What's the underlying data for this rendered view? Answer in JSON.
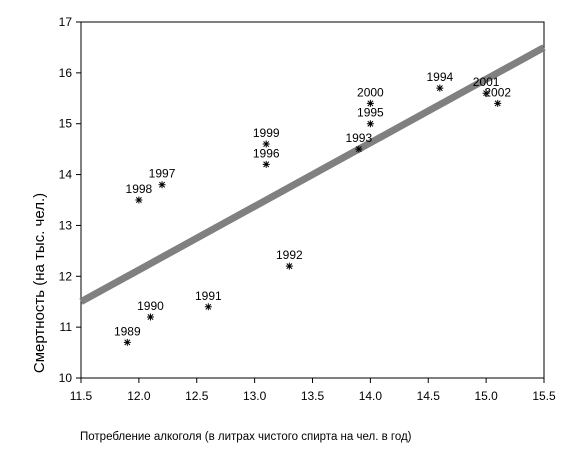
{
  "chart_data": {
    "type": "scatter",
    "title": "",
    "xlabel": "Потребление алкоголя (в литрах чистого спирта на чел. в год)",
    "ylabel": "Смертность (на тыс. чел.)",
    "xlim": [
      11.5,
      15.5
    ],
    "ylim": [
      10,
      17
    ],
    "xticks": [
      "11.5",
      "12.0",
      "12.5",
      "13.0",
      "13.5",
      "14.0",
      "14.5",
      "15.0",
      "15.5"
    ],
    "yticks": [
      "10",
      "11",
      "12",
      "13",
      "14",
      "15",
      "16",
      "17"
    ],
    "grid": false,
    "marker": "asterisk",
    "points": [
      {
        "label": "1989",
        "x": 11.9,
        "y": 10.7
      },
      {
        "label": "1990",
        "x": 12.1,
        "y": 11.2
      },
      {
        "label": "1991",
        "x": 12.6,
        "y": 11.4
      },
      {
        "label": "1992",
        "x": 13.3,
        "y": 12.2
      },
      {
        "label": "1993",
        "x": 13.9,
        "y": 14.5
      },
      {
        "label": "1994",
        "x": 14.6,
        "y": 15.7
      },
      {
        "label": "1995",
        "x": 14.0,
        "y": 15.0
      },
      {
        "label": "1996",
        "x": 13.1,
        "y": 14.2
      },
      {
        "label": "1997",
        "x": 12.2,
        "y": 13.8
      },
      {
        "label": "1998",
        "x": 12.0,
        "y": 13.5
      },
      {
        "label": "1999",
        "x": 13.1,
        "y": 14.6
      },
      {
        "label": "2000",
        "x": 14.0,
        "y": 15.4
      },
      {
        "label": "2001",
        "x": 15.0,
        "y": 15.6
      },
      {
        "label": "2002",
        "x": 15.1,
        "y": 15.4
      }
    ],
    "fit_line": {
      "x": [
        11.5,
        15.5
      ],
      "y": [
        11.5,
        16.5
      ],
      "color": "#808080"
    }
  }
}
